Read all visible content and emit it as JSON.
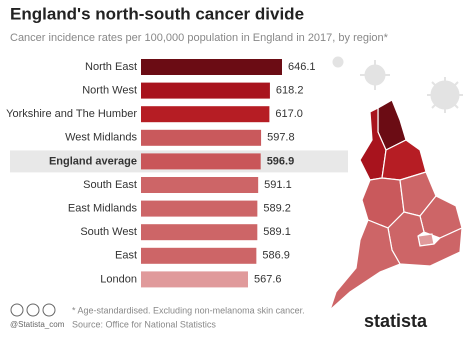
{
  "chart_data": {
    "type": "bar",
    "orientation": "horizontal",
    "title": "England's north-south cancer divide",
    "subtitle": "Cancer incidence rates per 100,000 population in England in 2017, by region*",
    "categories": [
      "North East",
      "North West",
      "Yorkshire and The Humber",
      "West Midlands",
      "England average",
      "South East",
      "East Midlands",
      "South West",
      "East",
      "London"
    ],
    "values": [
      646.1,
      618.2,
      617.0,
      597.8,
      596.9,
      591.1,
      589.2,
      589.1,
      586.9,
      567.6
    ],
    "value_labels": [
      "646.1",
      "618.2",
      "617.0",
      "597.8",
      "596.9",
      "591.1",
      "589.2",
      "589.1",
      "586.9",
      "567.6"
    ],
    "colors": [
      "#6b0c14",
      "#a8131d",
      "#b61d24",
      "#c9595c",
      "#c95659",
      "#cd6567",
      "#cd6567",
      "#cd6567",
      "#cd6567",
      "#e09a9b"
    ],
    "highlight": "England average",
    "footnote": "* Age-standardised. Excluding non-melanoma skin cancer.",
    "source": "Source: Office for National Statistics",
    "handle": "@Statista_com",
    "brand": "statista"
  }
}
